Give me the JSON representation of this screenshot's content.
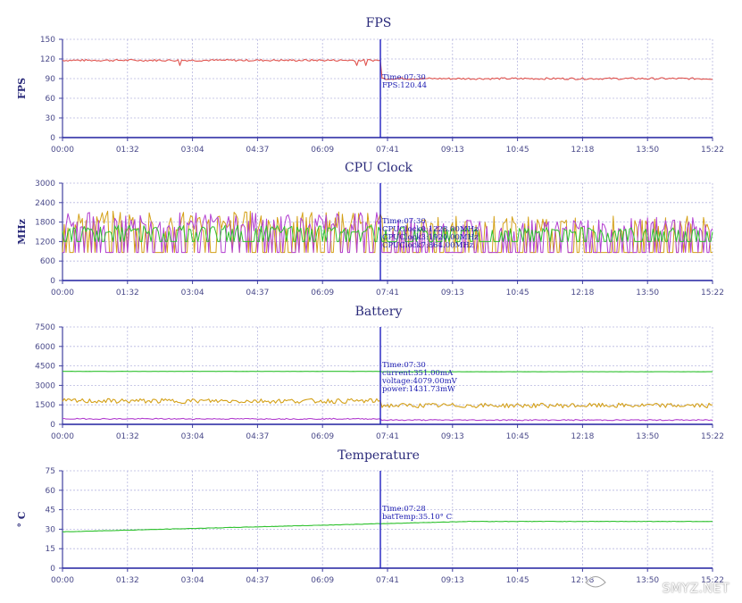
{
  "x_ticks": [
    "00:00",
    "01:32",
    "03:04",
    "04:37",
    "06:09",
    "07:41",
    "09:13",
    "10:45",
    "12:18",
    "13:50",
    "15:22"
  ],
  "cursor_time_value": 7.5,
  "watermark": "SMYZ.NET",
  "charts": [
    {
      "title": "FPS",
      "ylabel": "FPS",
      "y_ticks": [
        "0",
        "30",
        "60",
        "90",
        "120",
        "150"
      ],
      "ylim": [
        0,
        150
      ],
      "tooltip": [
        "Time:07:30",
        "FPS:120.44"
      ],
      "series": [
        {
          "color": "#e0534e",
          "level": 118,
          "level2": 90,
          "noise": 1.5,
          "dip": true
        }
      ]
    },
    {
      "title": "CPU Clock",
      "ylabel": "MHz",
      "y_ticks": [
        "0",
        "600",
        "1200",
        "1800",
        "2400",
        "3000"
      ],
      "ylim": [
        0,
        3000
      ],
      "tooltip": [
        "Time:07:30",
        "CPUClock0:1228.00MHz",
        "CPUClock3:1920.00MHz",
        "CPUClock7:864.00MHz"
      ],
      "series": [
        {
          "color": "#d4a017",
          "type": "jumpy",
          "low": 864,
          "high": 2150
        },
        {
          "color": "#b23fd0",
          "type": "jumpy",
          "low": 864,
          "high": 2100
        },
        {
          "color": "#2ec12e",
          "type": "jumpy",
          "low": 1200,
          "high": 1700
        }
      ]
    },
    {
      "title": "Battery",
      "ylabel": "",
      "y_ticks": [
        "0",
        "1500",
        "3000",
        "4500",
        "6000",
        "7500"
      ],
      "ylim": [
        0,
        7500
      ],
      "tooltip": [
        "Time:07:30",
        "current:351.00mA",
        "voltage:4079.00mV",
        "power:1431.73mW"
      ],
      "series": [
        {
          "color": "#2ec12e",
          "level": 4079,
          "level2": 4050,
          "noise": 5
        },
        {
          "color": "#d4a017",
          "level": 1800,
          "level2": 1450,
          "noise": 180
        },
        {
          "color": "#b23fd0",
          "level": 420,
          "level2": 330,
          "noise": 40
        }
      ]
    },
    {
      "title": "Temperature",
      "ylabel": "° C",
      "y_ticks": [
        "0",
        "15",
        "30",
        "45",
        "60",
        "75"
      ],
      "ylim": [
        0,
        75
      ],
      "tooltip": [
        "Time:07:28",
        "batTemp:35.10° C"
      ],
      "series": [
        {
          "color": "#2ec12e",
          "type": "ramp",
          "from": 28,
          "to": 36
        }
      ]
    }
  ]
}
